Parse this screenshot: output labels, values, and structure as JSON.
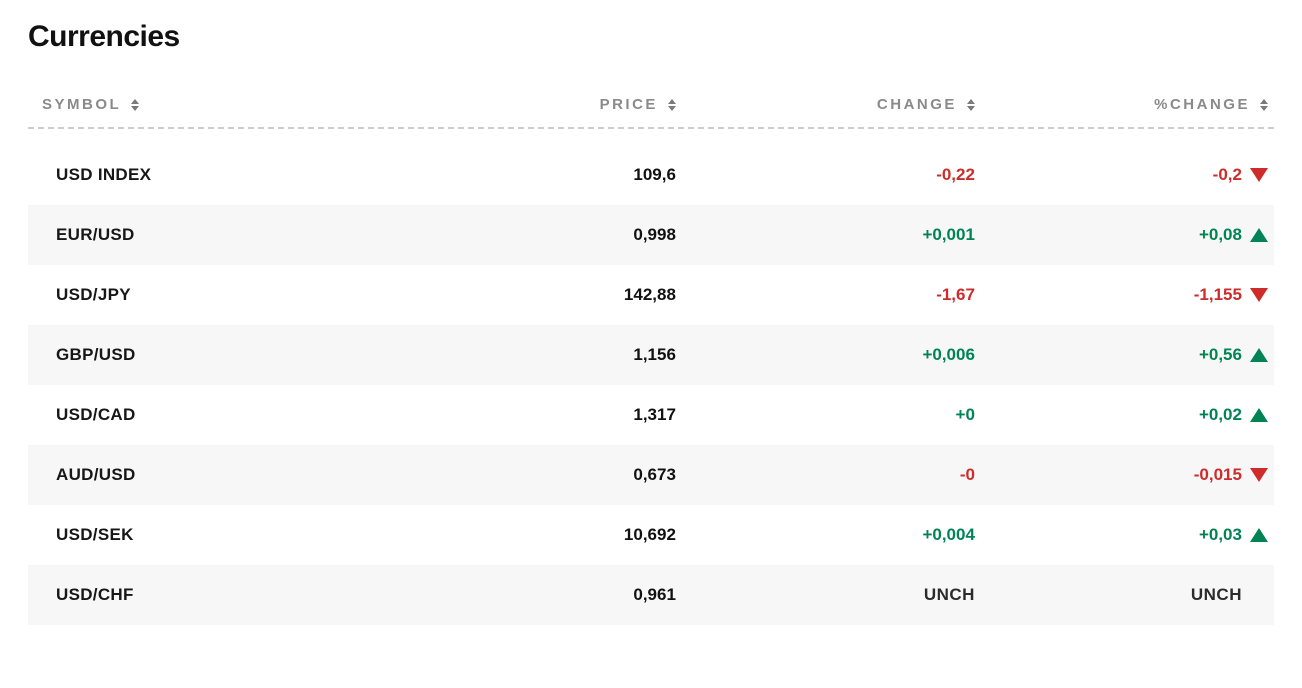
{
  "title": "Currencies",
  "columns": {
    "symbol": "SYMBOL",
    "price": "PRICE",
    "change": "CHANGE",
    "pct_change": "%CHANGE"
  },
  "colors": {
    "positive": "#008456",
    "negative": "#ce2b2b",
    "neutral": "#2b2b2b",
    "header_text": "#8a8a8a",
    "text": "#111111",
    "row_alt_bg": "#f7f7f7",
    "background": "#ffffff",
    "divider": "#cccccc"
  },
  "rows": [
    {
      "symbol": "USD INDEX",
      "price": "109,6",
      "change": "-0,22",
      "pct": "-0,2",
      "dir": "down",
      "alt": false
    },
    {
      "symbol": "EUR/USD",
      "price": "0,998",
      "change": "+0,001",
      "pct": "+0,08",
      "dir": "up",
      "alt": true
    },
    {
      "symbol": "USD/JPY",
      "price": "142,88",
      "change": "-1,67",
      "pct": "-1,155",
      "dir": "down",
      "alt": false
    },
    {
      "symbol": "GBP/USD",
      "price": "1,156",
      "change": "+0,006",
      "pct": "+0,56",
      "dir": "up",
      "alt": true
    },
    {
      "symbol": "USD/CAD",
      "price": "1,317",
      "change": "+0",
      "pct": "+0,02",
      "dir": "up",
      "alt": false
    },
    {
      "symbol": "AUD/USD",
      "price": "0,673",
      "change": "-0",
      "pct": "-0,015",
      "dir": "down",
      "alt": true
    },
    {
      "symbol": "USD/SEK",
      "price": "10,692",
      "change": "+0,004",
      "pct": "+0,03",
      "dir": "up",
      "alt": false
    },
    {
      "symbol": "USD/CHF",
      "price": "0,961",
      "change": "UNCH",
      "pct": "UNCH",
      "dir": "none",
      "alt": true
    }
  ]
}
